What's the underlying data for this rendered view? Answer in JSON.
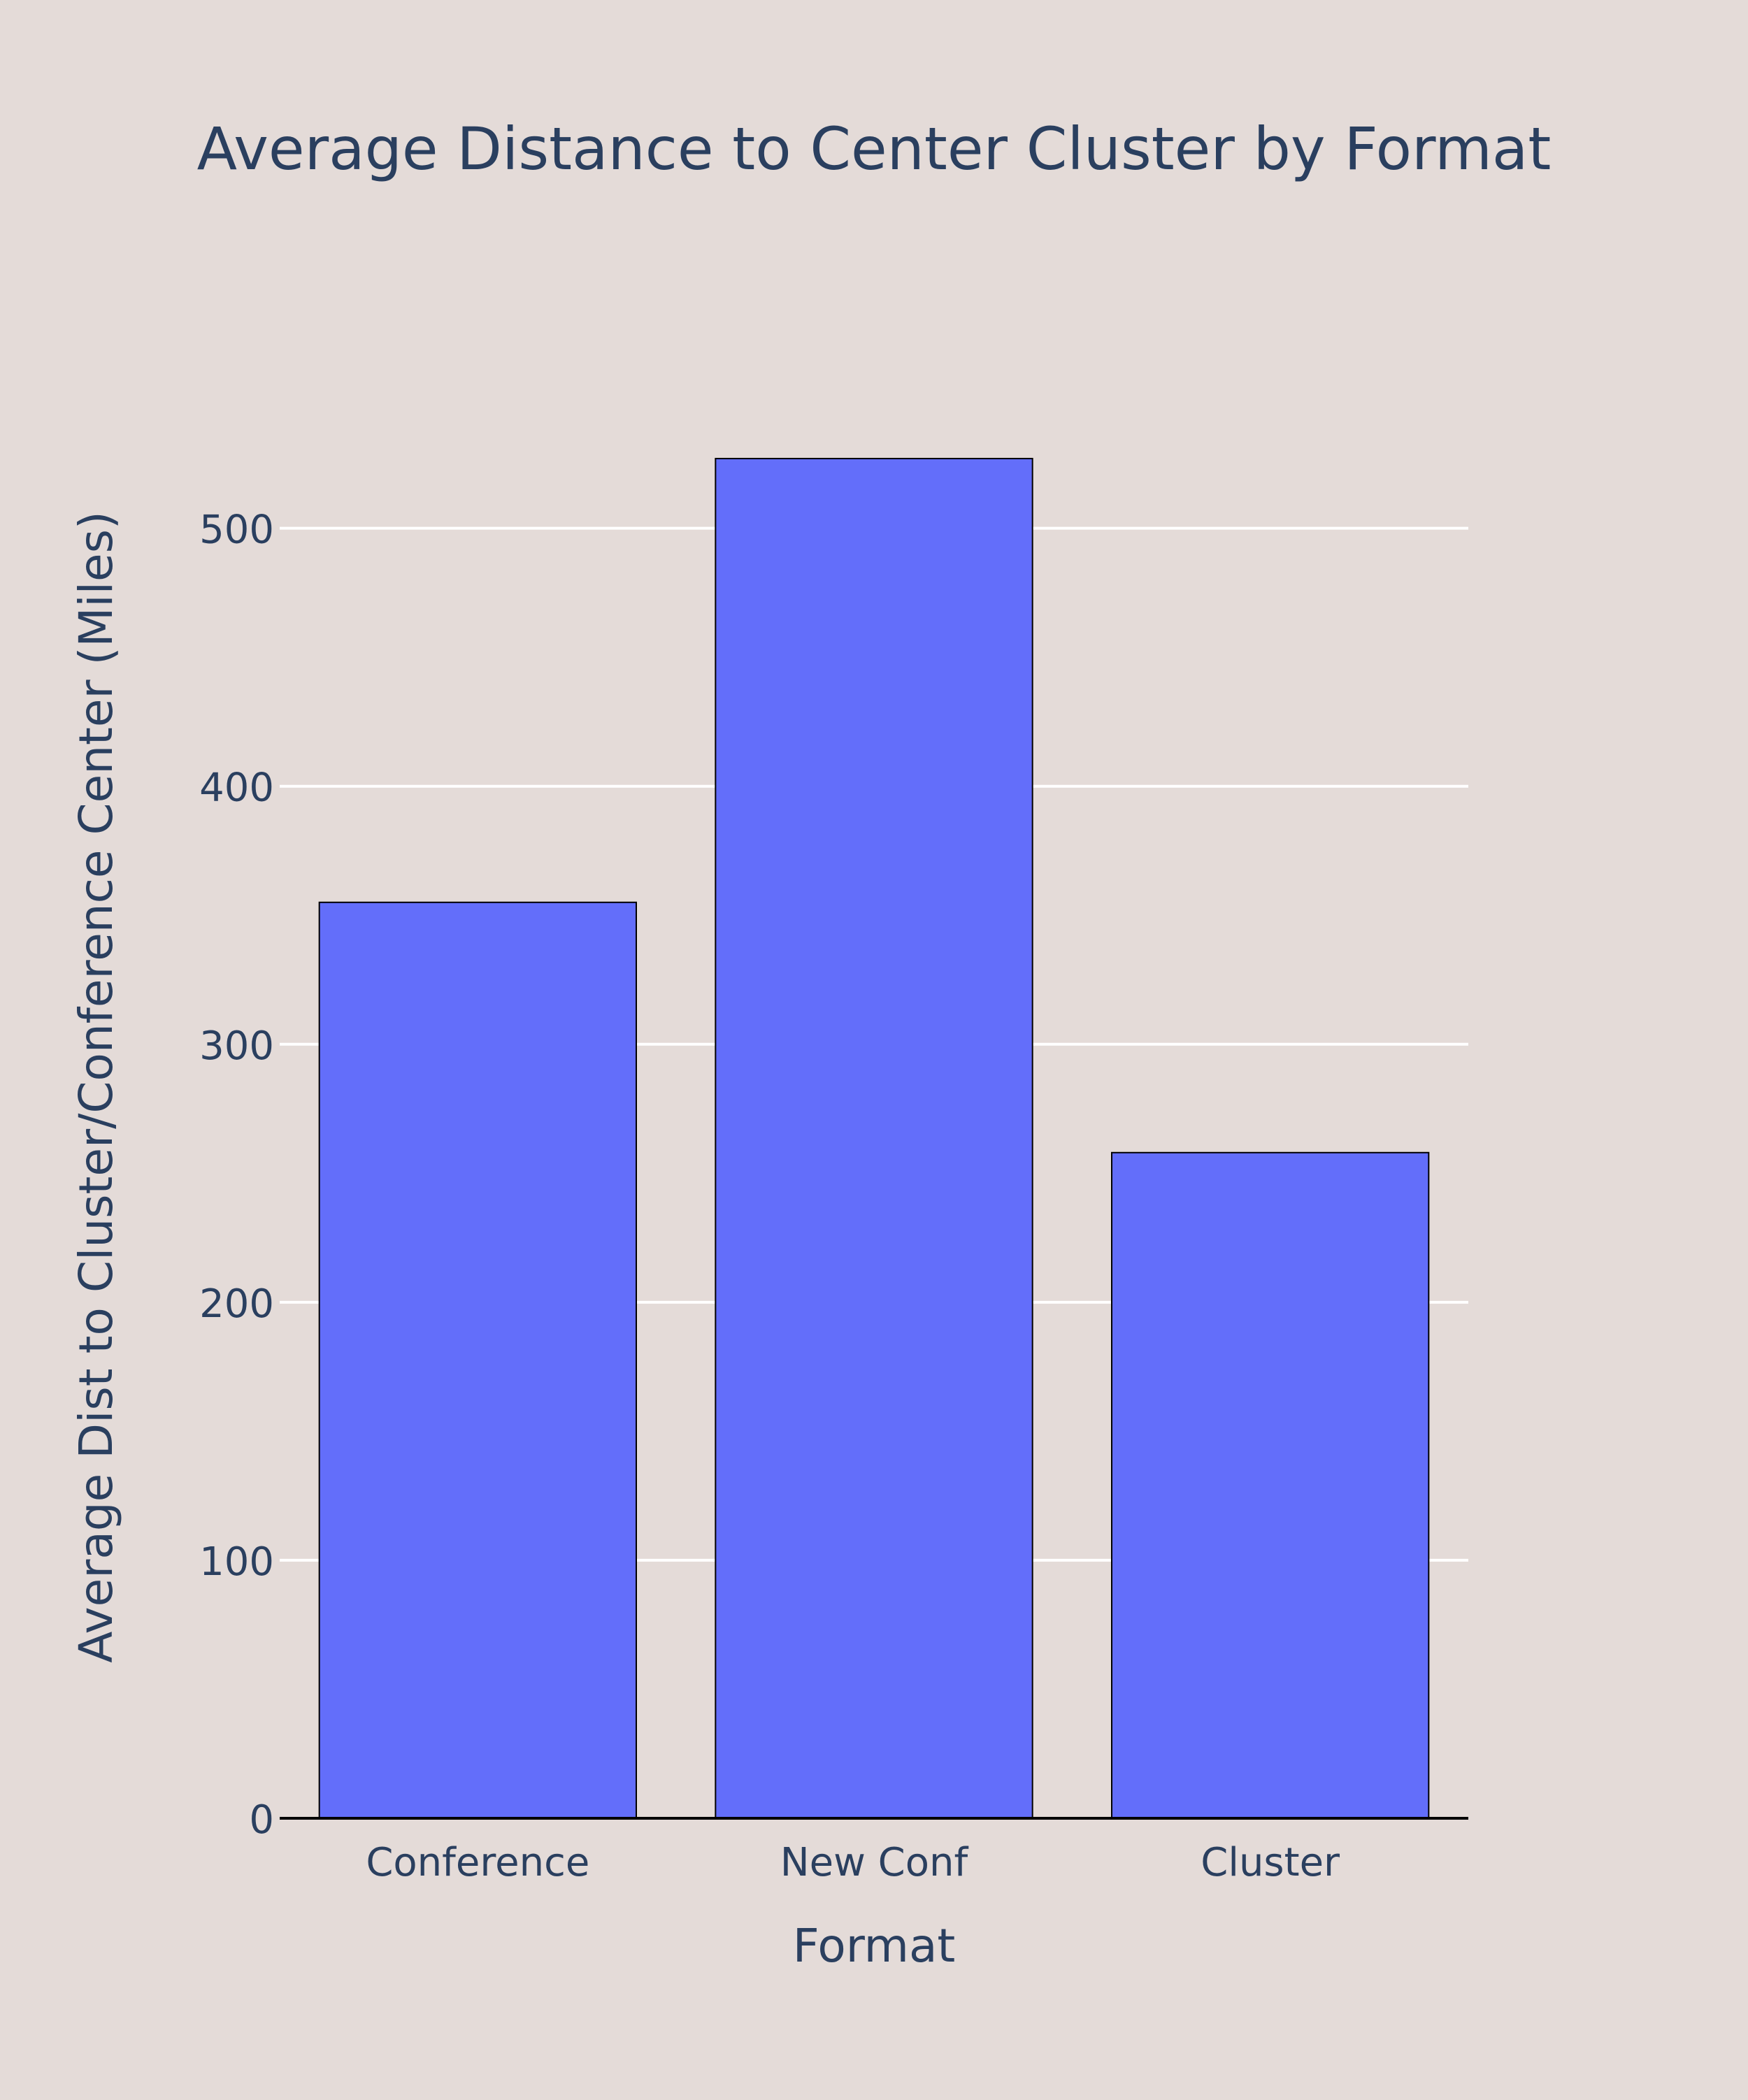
{
  "chart_data": {
    "type": "bar",
    "title": "Average Distance to Center Cluster by Format",
    "xlabel": "Format",
    "ylabel": "Average Dist to Cluster/Conference Center (Miles)",
    "categories": [
      "Conference",
      "New Conf",
      "Cluster"
    ],
    "values": [
      355,
      527,
      258
    ],
    "ylim": [
      0,
      553
    ],
    "yticks": [
      0,
      100,
      200,
      300,
      400,
      500
    ],
    "grid": true,
    "legend": "none"
  },
  "colors": {
    "background": "#e4dbd8",
    "bar_fill": "#636efa",
    "bar_stroke": "#000000",
    "grid": "#ffffff",
    "axis_line": "#000000",
    "text": "#2a3f5f"
  }
}
